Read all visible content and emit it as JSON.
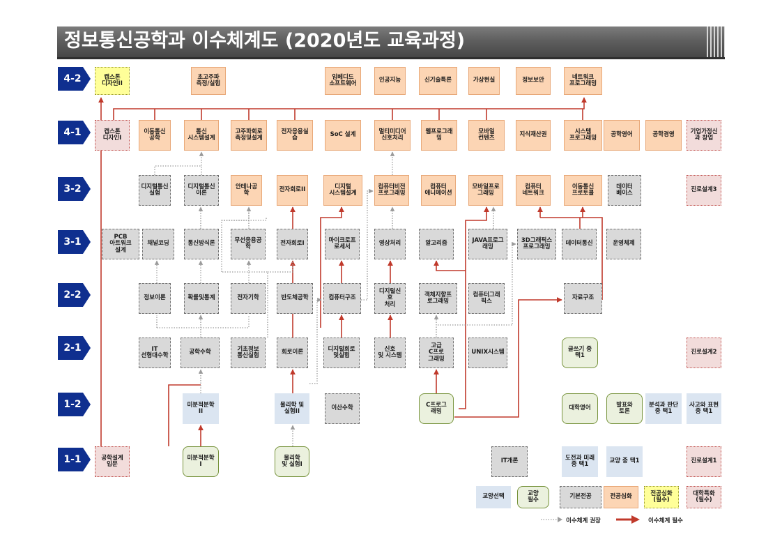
{
  "title": "정보통신공학과 이수체계도 (2020년도 교육과정)",
  "levels": [
    "4-2",
    "4-1",
    "3-2",
    "3-1",
    "2-2",
    "2-1",
    "1-2",
    "1-1"
  ],
  "courses": {
    "c42_capstone2": {
      "label": "캡스톤\n디자인II",
      "type": "jh"
    },
    "c42_ultra": {
      "label": "초고주파\n측정/실험",
      "type": "sim"
    },
    "c42_embedded": {
      "label": "임베디드\n소프트웨어",
      "type": "sim"
    },
    "c42_ai": {
      "label": "인공지능",
      "type": "sim"
    },
    "c42_newtech": {
      "label": "신기술특론",
      "type": "sim"
    },
    "c42_vr": {
      "label": "가상현실",
      "type": "sim"
    },
    "c42_infosec": {
      "label": "정보보안",
      "type": "sim"
    },
    "c42_netprog": {
      "label": "네트워크\n프로그래밍",
      "type": "sim"
    },
    "c41_capstone1": {
      "label": "캡스톤\n디자인I",
      "type": "dt"
    },
    "c41_mobilecomm": {
      "label": "이동통신\n공학",
      "type": "sim"
    },
    "c41_commsys": {
      "label": "통신\n시스템설계",
      "type": "sim"
    },
    "c41_hfcircuit": {
      "label": "고주파회로\n측정및설계",
      "type": "sim"
    },
    "c41_elecapp": {
      "label": "전자응용실\n습",
      "type": "sim"
    },
    "c41_soc": {
      "label": "SoC 설계",
      "type": "sim"
    },
    "c41_multimedia": {
      "label": "멀티미디어\n신호처리",
      "type": "sim"
    },
    "c41_webprog": {
      "label": "웹프로그래\n밍",
      "type": "sim"
    },
    "c41_mobilecontent": {
      "label": "모바일\n컨텐츠",
      "type": "sim"
    },
    "c41_ip": {
      "label": "지식재산권",
      "type": "sim"
    },
    "c41_sysprog": {
      "label": "시스템\n프로그래밍",
      "type": "sim"
    },
    "c41_engeng": {
      "label": "공학영어",
      "type": "sim"
    },
    "c41_engmgmt": {
      "label": "공학경영",
      "type": "sim"
    },
    "c41_startup": {
      "label": "기업가정신\n과 창업",
      "type": "dt"
    },
    "c32_dcomexp": {
      "label": "디지털통신\n실험",
      "type": "gib"
    },
    "c32_dcomtheory": {
      "label": "디지털통신\n이론",
      "type": "gib"
    },
    "c32_antenna": {
      "label": "안테나공학",
      "type": "sim"
    },
    "c32_elec2": {
      "label": "전자회로II",
      "type": "sim"
    },
    "c32_digsys": {
      "label": "디지털\n시스템설계",
      "type": "sim"
    },
    "c32_vision": {
      "label": "컴퓨터비전\n프로그래밍",
      "type": "sim"
    },
    "c32_animation": {
      "label": "컴퓨터\n애니메이션",
      "type": "sim"
    },
    "c32_mobileprog": {
      "label": "모바일프로\n그래밍",
      "type": "sim"
    },
    "c32_network": {
      "label": "컴퓨터\n네트워크",
      "type": "sim"
    },
    "c32_mobileproto": {
      "label": "이동통신\n프로토콜",
      "type": "sim"
    },
    "c32_database": {
      "label": "데이터\n베이스",
      "type": "gib"
    },
    "c32_career3": {
      "label": "진로설계3",
      "type": "dt"
    },
    "c31_pcb": {
      "label": "PCB\n아트워크\n설계",
      "type": "gib"
    },
    "c31_channel": {
      "label": "채널코딩",
      "type": "gib"
    },
    "c31_commmethod": {
      "label": "통신방식론",
      "type": "gib"
    },
    "c31_wireless": {
      "label": "무선응용공\n학",
      "type": "gib"
    },
    "c31_elec1": {
      "label": "전자회로I",
      "type": "gib"
    },
    "c31_micro": {
      "label": "마이크로프\n로세서",
      "type": "gib"
    },
    "c31_image": {
      "label": "영상처리",
      "type": "gib"
    },
    "c31_algo": {
      "label": "알고리즘",
      "type": "gib"
    },
    "c31_java": {
      "label": "JAVA프로그\n래밍",
      "type": "gib"
    },
    "c31_3dgraphics": {
      "label": "3D그래픽스\n프로그래밍",
      "type": "gib"
    },
    "c31_datacomm": {
      "label": "데이터통신",
      "type": "gib"
    },
    "c31_os": {
      "label": "운영체제",
      "type": "gib"
    },
    "c22_infotheory": {
      "label": "정보이론",
      "type": "gib"
    },
    "c22_probstat": {
      "label": "확률및통계",
      "type": "gib"
    },
    "c22_em": {
      "label": "전자기학",
      "type": "gib"
    },
    "c22_semi": {
      "label": "반도체공학",
      "type": "gib"
    },
    "c22_comparch": {
      "label": "컴퓨터구조",
      "type": "gib"
    },
    "c22_dsp": {
      "label": "디지털신호\n처리",
      "type": "gib"
    },
    "c22_oop": {
      "label": "객체지향프\n로그래밍",
      "type": "gib"
    },
    "c22_graphics": {
      "label": "컴퓨터그래\n픽스",
      "type": "gib"
    },
    "c22_datastruct": {
      "label": "자료구조",
      "type": "gib"
    },
    "c21_linalg": {
      "label": "IT\n선형대수학",
      "type": "gib"
    },
    "c21_engmath": {
      "label": "공학수학",
      "type": "gib"
    },
    "c21_basicexp": {
      "label": "기초정보\n통신실험",
      "type": "gib"
    },
    "c21_circuit": {
      "label": "회로이론",
      "type": "gib"
    },
    "c21_digcircuit": {
      "label": "디지털회로\n및실험",
      "type": "gib"
    },
    "c21_sigsys": {
      "label": "신호\n및 시스템",
      "type": "gib"
    },
    "c21_advc": {
      "label": "고급\nC프로\n그래밍",
      "type": "gib"
    },
    "c21_unix": {
      "label": "UNIX시스템",
      "type": "gib"
    },
    "c21_writing": {
      "label": "글쓰기 중\n택1",
      "type": "gp"
    },
    "c21_career2": {
      "label": "진로설계2",
      "type": "dt"
    },
    "c12_calc2": {
      "label": "미분적분학\nII",
      "type": "gyo"
    },
    "c12_phys2": {
      "label": "물리학 및\n실험II",
      "type": "gyo"
    },
    "c12_discrete": {
      "label": "이산수학",
      "type": "gib"
    },
    "c12_cprog": {
      "label": "C프로그\n래밍",
      "type": "gp"
    },
    "c12_univeng": {
      "label": "대학영어",
      "type": "gp"
    },
    "c12_presentation": {
      "label": "발표와\n토론",
      "type": "gp"
    },
    "c12_analysis": {
      "label": "분석과 판단\n중 택1",
      "type": "gyo"
    },
    "c12_thinking": {
      "label": "사고와 표현\n중 택1",
      "type": "gyo"
    },
    "c11_design": {
      "label": "공학설계\n입문",
      "type": "dt"
    },
    "c11_calc1": {
      "label": "미분적분학\nI",
      "type": "gp"
    },
    "c11_phys1": {
      "label": "물리학\n및 실험I",
      "type": "gp"
    },
    "c11_itintro": {
      "label": "IT개론",
      "type": "gib"
    },
    "c11_challenge": {
      "label": "도전과 미래\n중 택1",
      "type": "gyo"
    },
    "c11_liberal": {
      "label": "교양 중 택1",
      "type": "gyo"
    },
    "c11_career1": {
      "label": "진로설계1",
      "type": "dt"
    }
  },
  "legend": {
    "gyo": "교양선택",
    "gp": "교양\n필수",
    "gib": "기본전공",
    "sim": "전공심화",
    "jh": "전공심화\n(필수)",
    "dt": "대학특화\n(필수)",
    "recommended": "이수체계 권장",
    "required": "이수체계 필수"
  },
  "colors": {
    "level_arrow": "#0f2f8f",
    "required_line": "#c0392b",
    "recommended_line": "#9a9a9a"
  }
}
